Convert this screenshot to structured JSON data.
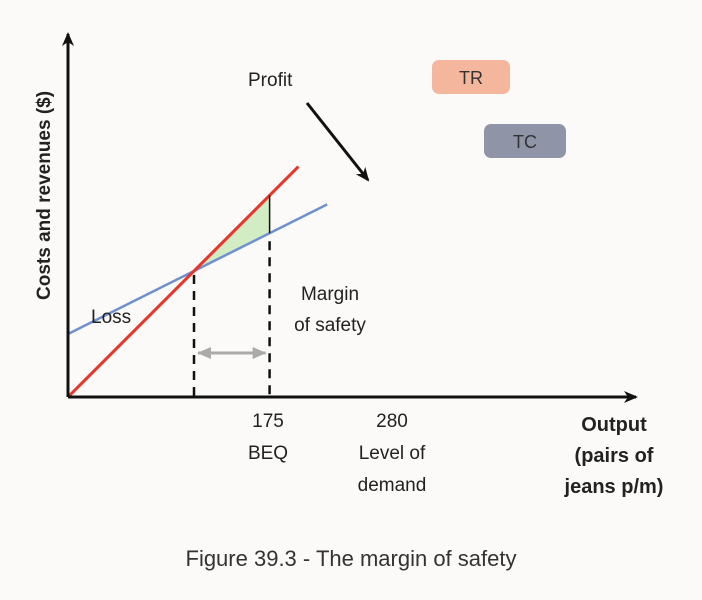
{
  "chart_data": {
    "type": "line",
    "ylabel": "Costs and revenues ($)",
    "xlabel_lines": [
      "Output",
      "(pairs of",
      "jeans p/m)"
    ],
    "x_ticks": [
      {
        "x": 175,
        "lines": [
          "175",
          "BEQ"
        ]
      },
      {
        "x": 280,
        "lines": [
          "280",
          "Level of",
          "demand"
        ]
      }
    ],
    "xlim": [
      0,
      500
    ],
    "series": [
      {
        "name": "TR",
        "color": "#e8342a",
        "x": [
          0,
          175,
          280,
          320
        ],
        "y": [
          0,
          175,
          280,
          320
        ]
      },
      {
        "name": "TC",
        "color": "#6f8fd0",
        "x": [
          0,
          175,
          280,
          360
        ],
        "y": [
          87.5,
          175,
          227.5,
          267.5
        ]
      }
    ],
    "legend_colors": {
      "TR": "#f4b79e",
      "TC": "#8f95a6"
    },
    "profit_fill": "#d2ecc4",
    "annotations": {
      "profit": "Profit",
      "loss": "Loss",
      "margin_lines": [
        "Margin",
        "of safety"
      ]
    },
    "grid": false
  },
  "caption": "Figure 39.3 - The margin of safety"
}
